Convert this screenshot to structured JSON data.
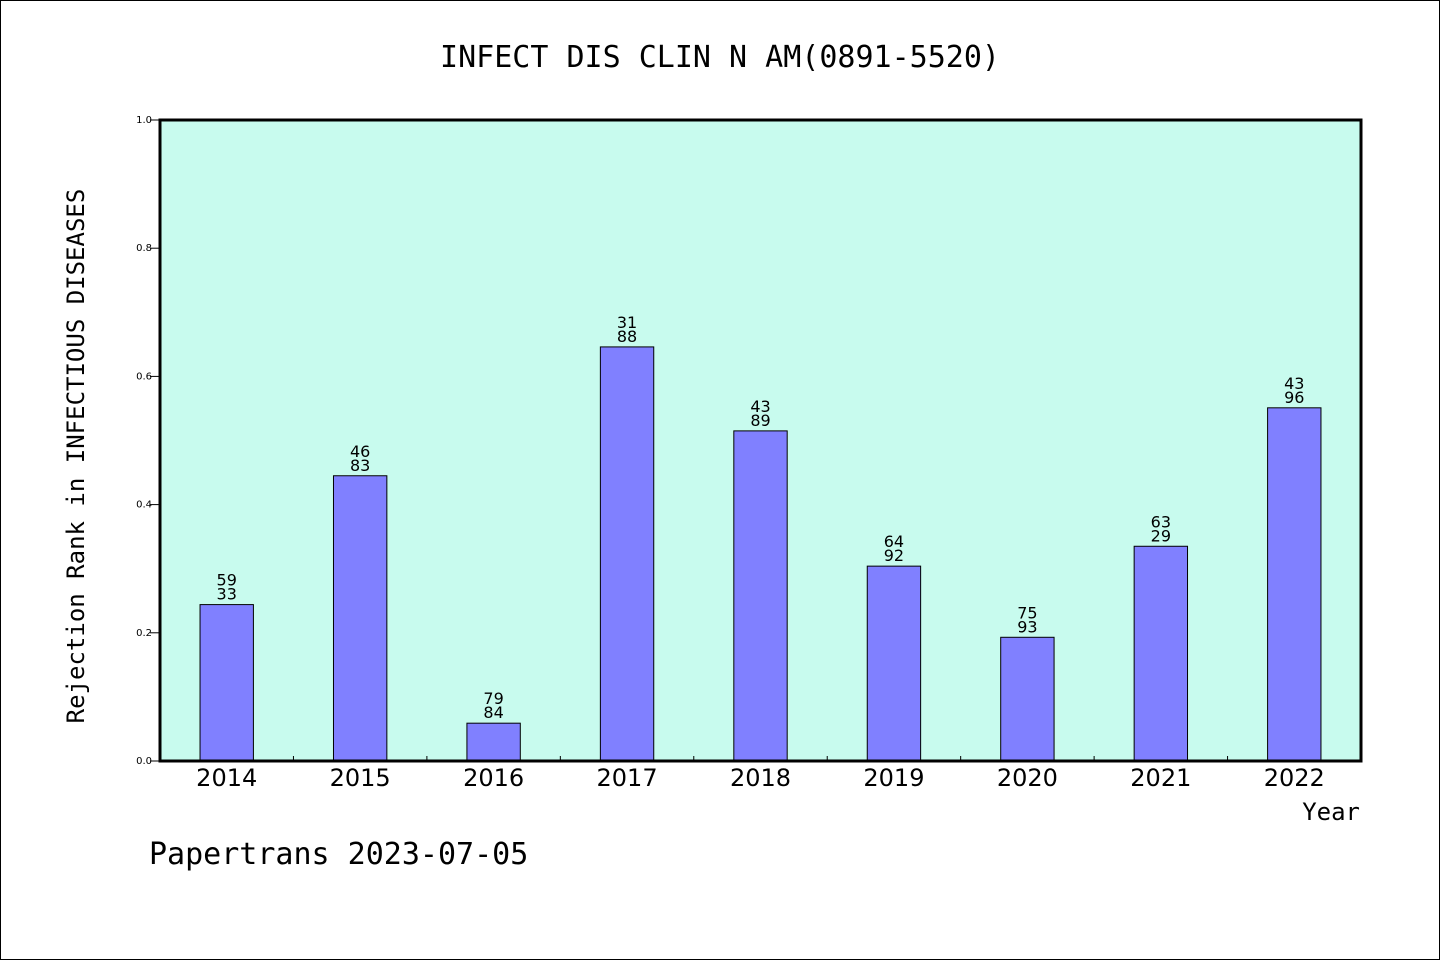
{
  "chart_data": {
    "type": "bar",
    "title": "INFECT DIS CLIN N AM(0891-5520)",
    "xlabel": "Year",
    "ylabel": "Rejection Rank in INFECTIOUS DISEASES",
    "categories": [
      "2014",
      "2015",
      "2016",
      "2017",
      "2018",
      "2019",
      "2020",
      "2021",
      "2022"
    ],
    "values": [
      0.244,
      0.445,
      0.059,
      0.646,
      0.515,
      0.304,
      0.193,
      0.335,
      0.551
    ],
    "bar_labels": [
      [
        "59",
        "33"
      ],
      [
        "46",
        "83"
      ],
      [
        "79",
        "84"
      ],
      [
        "31",
        "88"
      ],
      [
        "43",
        "89"
      ],
      [
        "64",
        "92"
      ],
      [
        "75",
        "93"
      ],
      [
        "63",
        "29"
      ],
      [
        "43",
        "96"
      ]
    ],
    "ylim": [
      0,
      1.0
    ],
    "yticks": [
      "0.0",
      "0.2",
      "0.4",
      "0.6",
      "0.8",
      "1.0"
    ],
    "grid": false,
    "colors": {
      "plot_background": "#c8fbee",
      "bar_fill": "#8080ff",
      "bar_stroke": "#000000"
    }
  },
  "footer": "Papertrans 2023-07-05"
}
